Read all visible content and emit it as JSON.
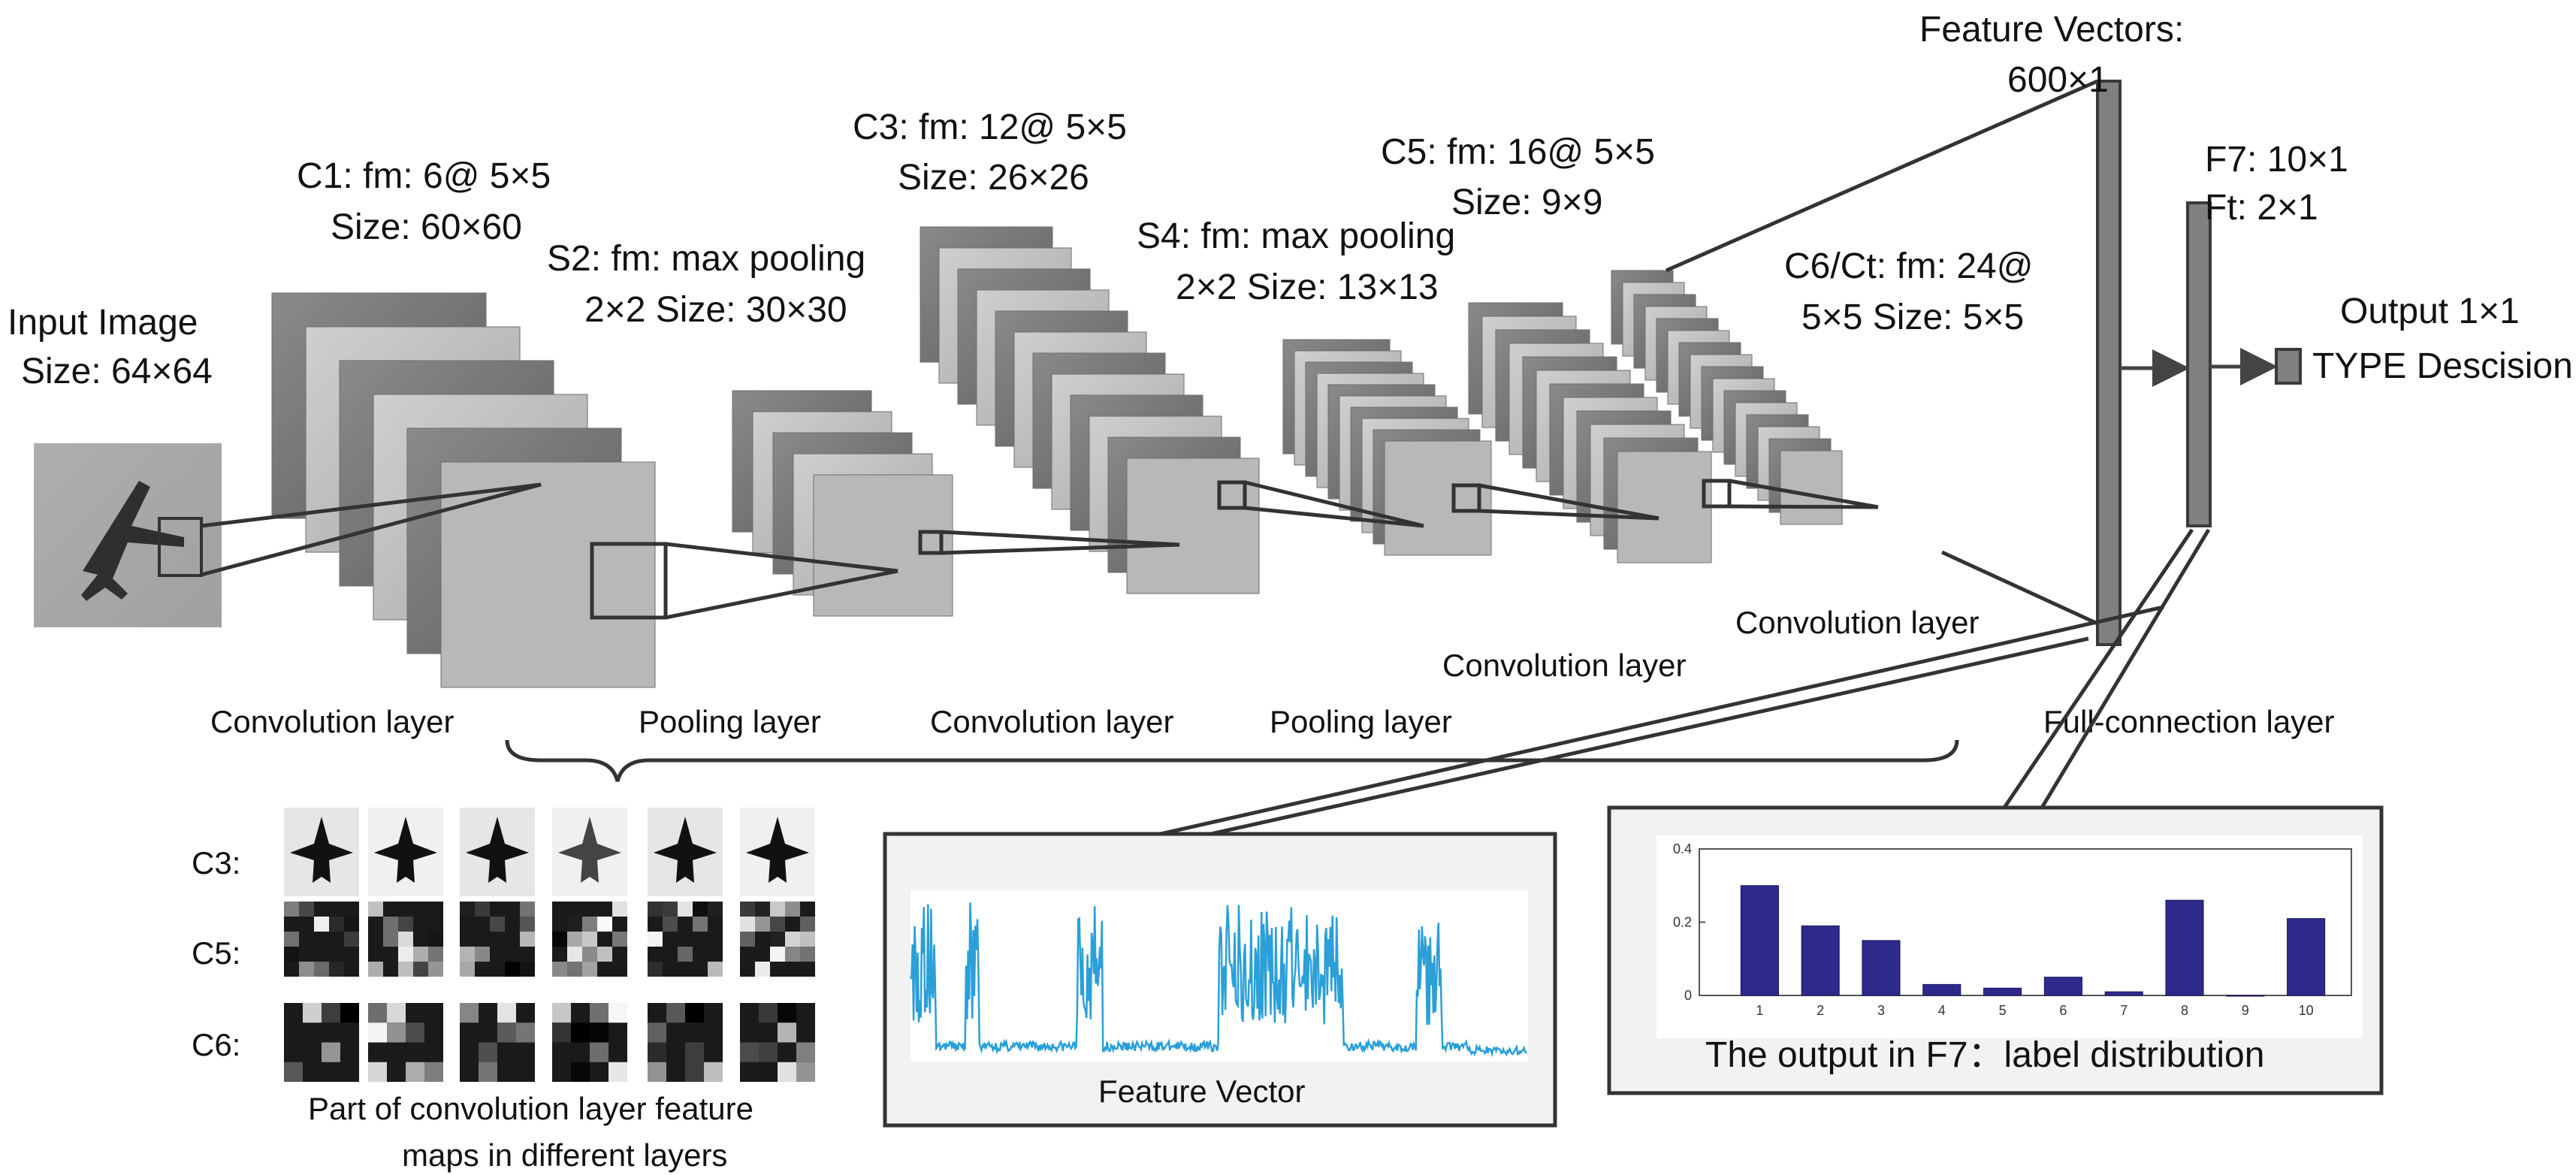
{
  "input": {
    "title": "Input Image",
    "size": "Size: 64×64"
  },
  "c1": {
    "line1": "C1: fm: 6@ 5×5",
    "line2": "Size: 60×60"
  },
  "s2": {
    "line1": "S2: fm:  max pooling",
    "line2": "2×2  Size: 30×30"
  },
  "c3": {
    "line1": "C3: fm: 12@ 5×5",
    "line2": "Size: 26×26"
  },
  "s4": {
    "line1": "S4: fm:  max pooling",
    "line2": "2×2  Size: 13×13"
  },
  "c5": {
    "line1": "C5: fm: 16@ 5×5",
    "line2": "Size: 9×9"
  },
  "c6": {
    "line1": "C6/Ct: fm: 24@",
    "line2": "5×5  Size: 5×5"
  },
  "fv": {
    "line1": "Feature Vectors:",
    "line2": "600×1"
  },
  "f7": {
    "line1": "F7: 10×1",
    "line2": "Ft: 2×1"
  },
  "output": {
    "title": "Output 1×1",
    "decision": "TYPE Descision"
  },
  "layers": {
    "conv1": "Convolution layer",
    "pool1": "Pooling layer",
    "conv2": "Convolution layer",
    "pool2": "Pooling layer",
    "conv3": "Convolution layer",
    "conv4": "Convolution layer",
    "full": "Full-connection layer"
  },
  "feature_maps": {
    "row_labels": [
      "C3:",
      "C5:",
      "C6:"
    ],
    "caption_line1": "Part of convolution layer feature",
    "caption_line2": "maps in different layers"
  },
  "feature_vector_panel": {
    "caption": "Feature Vector"
  },
  "chart_data": {
    "type": "bar",
    "title": "The output in F7：label distribution",
    "categories": [
      "1",
      "2",
      "3",
      "4",
      "5",
      "6",
      "7",
      "8",
      "9",
      "10"
    ],
    "values": [
      0.3,
      0.19,
      0.15,
      0.03,
      0.02,
      0.05,
      0.01,
      0.26,
      0.0,
      0.21
    ],
    "ylim": [
      0,
      0.4
    ],
    "yticks": [
      "0",
      "0.2",
      "0.4"
    ],
    "bar_color": "#2e2a8c"
  },
  "colors": {
    "dark_map": "#7a7a7a",
    "light_map": "#bdbdbd",
    "signal": "#2a9fd8"
  }
}
